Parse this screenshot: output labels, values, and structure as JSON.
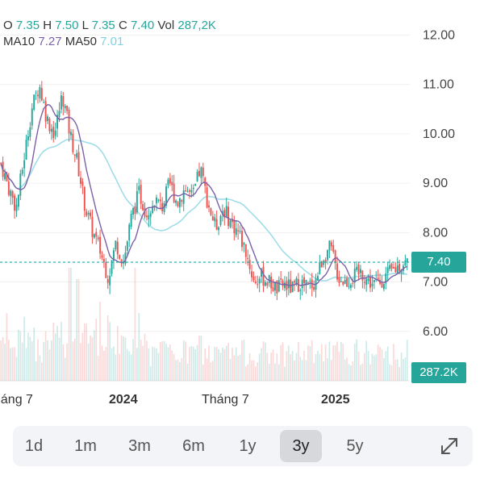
{
  "ohlc_header": {
    "o_label": "O",
    "o_value": "7.35",
    "h_label": "H",
    "h_value": "7.50",
    "l_label": "L",
    "l_value": "7.35",
    "c_label": "C",
    "c_value": "7.40",
    "vol_label": "Vol",
    "vol_value": "287,2K",
    "ma10_label": "MA10",
    "ma10_value": "7.27",
    "ma50_label": "MA50",
    "ma50_value": "7.01"
  },
  "badges": {
    "last_price": "7.40",
    "last_volume": "287.2K"
  },
  "timeframes": [
    "1d",
    "1m",
    "3m",
    "6m",
    "1y",
    "3y",
    "5y"
  ],
  "active_timeframe": "3y",
  "colors": {
    "up": "#26a69a",
    "down": "#ef5350",
    "ma10": "#7b61a8",
    "ma50": "#9fdde8",
    "accent": "#26a69a"
  },
  "icons": {
    "expand": "expand-arrows-icon"
  },
  "chart_data": {
    "type": "candlestick",
    "y_ticks": [
      "12.00",
      "11.00",
      "10.00",
      "9.00",
      "8.00",
      "7.00",
      "6.00"
    ],
    "y_tick_values": [
      12,
      11,
      10,
      9,
      8,
      7,
      6
    ],
    "ylim": [
      5.0,
      12.35
    ],
    "x_ticks": [
      "háng 7",
      "2024",
      "Tháng 7",
      "2025"
    ],
    "last_price": 7.4,
    "price_path": [
      [
        0,
        9.4
      ],
      [
        2,
        8.9
      ],
      [
        4,
        8.5
      ],
      [
        6,
        9.5
      ],
      [
        8,
        10.5
      ],
      [
        10,
        11.0
      ],
      [
        12,
        10.3
      ],
      [
        14,
        10.0
      ],
      [
        16,
        10.8
      ],
      [
        18,
        10.0
      ],
      [
        20,
        9.4
      ],
      [
        22,
        8.5
      ],
      [
        24,
        8.0
      ],
      [
        26,
        7.6
      ],
      [
        28,
        7.1
      ],
      [
        30,
        7.8
      ],
      [
        32,
        7.4
      ],
      [
        34,
        8.3
      ],
      [
        36,
        8.8
      ],
      [
        38,
        8.4
      ],
      [
        40,
        8.7
      ],
      [
        42,
        8.5
      ],
      [
        44,
        9.0
      ],
      [
        46,
        8.6
      ],
      [
        48,
        8.9
      ],
      [
        50,
        8.7
      ],
      [
        52,
        9.3
      ],
      [
        54,
        8.6
      ],
      [
        56,
        8.1
      ],
      [
        58,
        8.5
      ],
      [
        60,
        8.2
      ],
      [
        62,
        8.0
      ],
      [
        64,
        7.6
      ],
      [
        66,
        7.0
      ],
      [
        68,
        7.1
      ],
      [
        70,
        7.0
      ],
      [
        72,
        6.85
      ],
      [
        74,
        6.95
      ],
      [
        76,
        6.85
      ],
      [
        78,
        7.0
      ],
      [
        80,
        6.9
      ],
      [
        82,
        7.0
      ],
      [
        84,
        7.5
      ],
      [
        86,
        7.7
      ],
      [
        88,
        7.1
      ],
      [
        90,
        7.0
      ],
      [
        92,
        7.1
      ],
      [
        94,
        7.2
      ],
      [
        96,
        7.0
      ],
      [
        98,
        6.95
      ],
      [
        100,
        7.1
      ],
      [
        102,
        7.2
      ],
      [
        104,
        7.35
      ],
      [
        106,
        7.4
      ]
    ],
    "volume_spikes": [
      [
        18,
        1.0
      ],
      [
        20,
        0.9
      ],
      [
        25,
        0.55
      ],
      [
        26,
        0.7
      ],
      [
        35,
        1.0
      ],
      [
        36,
        0.6
      ],
      [
        42,
        0.35
      ],
      [
        52,
        0.4
      ],
      [
        56,
        0.3
      ],
      [
        70,
        0.15
      ],
      [
        85,
        0.2
      ],
      [
        100,
        0.2
      ]
    ]
  }
}
